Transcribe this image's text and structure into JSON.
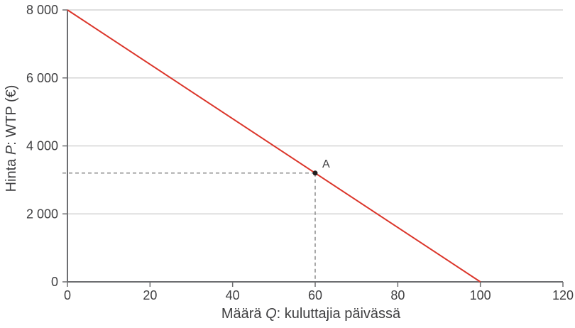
{
  "figure": {
    "background": "#ffffff"
  },
  "colors": {
    "demand_line": "#db352a",
    "axis": "#6d6e71",
    "grid": "#d4d4d4",
    "tick_label": "#3f3f41",
    "axis_label": "#3f3f41",
    "dashed_guide": "#8c8c8c",
    "point": "#221f1f"
  },
  "chart_data": {
    "type": "line",
    "title": "",
    "xlabel": "Määrä Q: kuluttajia päivässä",
    "ylabel": "Hinta P: WTP (€)",
    "xlabel_parts": {
      "pre": "Määrä ",
      "var": "Q",
      "post": ": kuluttajia päivässä"
    },
    "ylabel_parts": {
      "pre": "Hinta ",
      "var": "P",
      "post": ": WTP (€)"
    },
    "xlim": [
      0,
      120
    ],
    "ylim": [
      0,
      8000
    ],
    "x_ticks": [
      0,
      20,
      40,
      60,
      80,
      100,
      120
    ],
    "y_ticks": [
      0,
      2000,
      4000,
      6000,
      8000
    ],
    "x_tick_labels": [
      "0",
      "20",
      "40",
      "60",
      "80",
      "100",
      "120"
    ],
    "y_tick_labels": [
      "0",
      "2 000",
      "4 000",
      "6 000",
      "8 000"
    ],
    "grid": "horizontal-only",
    "legend": "none",
    "series": [
      {
        "name": "demand-wtp-line",
        "x": [
          0,
          100
        ],
        "y": [
          8000,
          0
        ]
      }
    ],
    "annotations": [
      {
        "label": "A",
        "x": 60,
        "y": 3200,
        "guides": "dashed-to-both-axes"
      }
    ]
  }
}
